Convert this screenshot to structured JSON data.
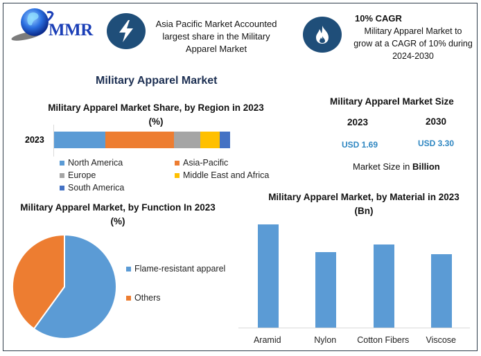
{
  "header": {
    "logo_text": "MMR",
    "info_box_1": {
      "icon": "lightning-icon",
      "lines": [
        "Asia Pacific Market Accounted",
        "largest share in the Military",
        "Apparel Market"
      ]
    },
    "info_box_2": {
      "icon": "flame-icon",
      "title": "10% CAGR",
      "lines": [
        "Military Apparel Market to",
        "grow at a CAGR of 10% during",
        "2024-2030"
      ]
    }
  },
  "main_title": "Military Apparel Market",
  "market_size": {
    "title": "Military Apparel Market Size",
    "years": [
      "2023",
      "2030"
    ],
    "values": [
      "USD 1.69",
      "USD 3.30"
    ],
    "note_prefix": "Market Size in ",
    "note_bold": "Billion"
  },
  "colors": {
    "north_america": "#5b9bd5",
    "asia_pacific": "#ed7d31",
    "europe": "#a5a5a5",
    "mea": "#ffc000",
    "south_america": "#4472c4",
    "icon_bg": "#1f4e79",
    "value_blue": "#2e86c1"
  },
  "chart_data": [
    {
      "type": "bar",
      "orientation": "horizontal-stacked",
      "title": "Military Apparel Market Share, by Region in 2023 (%)",
      "categories": [
        "2023"
      ],
      "series": [
        {
          "name": "North America",
          "values": [
            29
          ],
          "color": "#5b9bd5"
        },
        {
          "name": "Asia-Pacific",
          "values": [
            39
          ],
          "color": "#ed7d31"
        },
        {
          "name": "Europe",
          "values": [
            15
          ],
          "color": "#a5a5a5"
        },
        {
          "name": "Middle East and Africa",
          "values": [
            11
          ],
          "color": "#ffc000"
        },
        {
          "name": "South America",
          "values": [
            6
          ],
          "color": "#4472c4"
        }
      ],
      "legend_position": "bottom",
      "grid": false
    },
    {
      "type": "pie",
      "title": "Military Apparel Market, by Function In 2023 (%)",
      "categories": [
        "Flame-resistant apparel",
        "Others"
      ],
      "values": [
        60,
        40
      ],
      "colors": [
        "#5b9bd5",
        "#ed7d31"
      ],
      "legend_position": "right"
    },
    {
      "type": "bar",
      "title": "Military Apparel Market, by Material in 2023 (Bn)",
      "categories": [
        "Aramid",
        "Nylon",
        "Cotton Fibers",
        "Viscose"
      ],
      "values": [
        0.52,
        0.38,
        0.42,
        0.37
      ],
      "xlabel": "",
      "ylabel": "",
      "grid": false,
      "color": "#5b9bd5"
    }
  ]
}
